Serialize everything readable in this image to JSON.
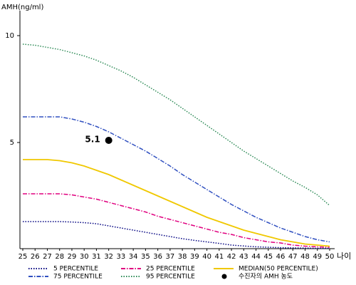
{
  "chart_data": {
    "type": "line",
    "y_label": "AMH(ng/ml)",
    "x_label": "나이",
    "x": [
      25,
      26,
      27,
      28,
      29,
      30,
      31,
      32,
      33,
      34,
      35,
      36,
      37,
      38,
      39,
      40,
      41,
      42,
      43,
      44,
      45,
      46,
      47,
      48,
      49,
      50
    ],
    "xlim": [
      25,
      50
    ],
    "ylim": [
      0,
      11.2
    ],
    "yticks": [
      5,
      10
    ],
    "series": [
      {
        "name": "5 PERCENTILE",
        "color": "#000080",
        "style": "dotted",
        "values": [
          1.3,
          1.3,
          1.3,
          1.3,
          1.28,
          1.25,
          1.2,
          1.1,
          1.0,
          0.9,
          0.8,
          0.7,
          0.6,
          0.5,
          0.42,
          0.35,
          0.28,
          0.2,
          0.16,
          0.12,
          0.1,
          0.08,
          0.07,
          0.06,
          0.05,
          0.05
        ]
      },
      {
        "name": "25 PERCENTILE",
        "color": "#e0007f",
        "style": "dashdot",
        "values": [
          2.6,
          2.6,
          2.6,
          2.6,
          2.55,
          2.45,
          2.35,
          2.2,
          2.05,
          1.9,
          1.75,
          1.55,
          1.4,
          1.25,
          1.1,
          0.95,
          0.8,
          0.7,
          0.55,
          0.45,
          0.35,
          0.3,
          0.2,
          0.15,
          0.12,
          0.1
        ]
      },
      {
        "name": "MEDIAN(50 PERCENTILE)",
        "color": "#f0c800",
        "style": "solid",
        "values": [
          4.2,
          4.2,
          4.2,
          4.15,
          4.05,
          3.9,
          3.7,
          3.5,
          3.25,
          3.0,
          2.75,
          2.5,
          2.25,
          2.0,
          1.75,
          1.5,
          1.3,
          1.1,
          0.9,
          0.75,
          0.6,
          0.45,
          0.35,
          0.25,
          0.2,
          0.15
        ]
      },
      {
        "name": "75 PERCENTILE",
        "color": "#3050c0",
        "style": "dashdot",
        "values": [
          6.2,
          6.2,
          6.2,
          6.2,
          6.1,
          5.95,
          5.75,
          5.5,
          5.2,
          4.9,
          4.6,
          4.25,
          3.9,
          3.5,
          3.15,
          2.8,
          2.45,
          2.1,
          1.8,
          1.5,
          1.25,
          1.0,
          0.8,
          0.6,
          0.45,
          0.35
        ]
      },
      {
        "name": "95 PERCENTILE",
        "color": "#2e8b57",
        "style": "dotted",
        "values": [
          9.6,
          9.55,
          9.45,
          9.35,
          9.2,
          9.05,
          8.85,
          8.6,
          8.35,
          8.05,
          7.7,
          7.35,
          7.0,
          6.6,
          6.2,
          5.8,
          5.4,
          5.0,
          4.6,
          4.25,
          3.9,
          3.55,
          3.2,
          2.9,
          2.55,
          2.05
        ]
      },
      {
        "name": "수진자의 AMH 농도",
        "color": "#000000",
        "style": "point",
        "x": [
          32
        ],
        "values": [
          5.1
        ],
        "value_labels": [
          "5.1"
        ]
      }
    ]
  }
}
